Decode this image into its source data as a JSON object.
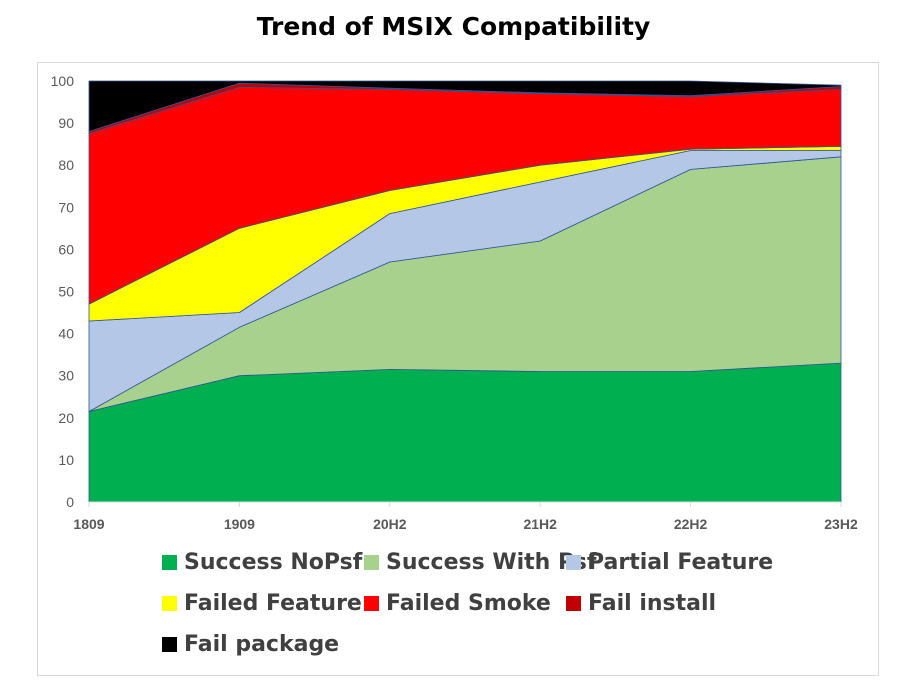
{
  "chart_data": {
    "type": "area",
    "stacked": true,
    "title": "Trend of MSIX Compatibility",
    "categories": [
      "1809",
      "1909",
      "20H2",
      "21H2",
      "22H2",
      "23H2"
    ],
    "ylim": [
      0,
      100
    ],
    "yticks": [
      0,
      10,
      20,
      30,
      40,
      50,
      60,
      70,
      80,
      90,
      100
    ],
    "grid": false,
    "legend_position": "bottom",
    "series": [
      {
        "name": "Success NoPsf",
        "color": "#00b050",
        "values": [
          21.5,
          30,
          31.5,
          31,
          31,
          33
        ]
      },
      {
        "name": "Success With Psf",
        "color": "#a9d18e",
        "values": [
          0,
          11.5,
          25.5,
          31,
          48,
          49
        ]
      },
      {
        "name": "Partial Feature",
        "color": "#b4c7e7",
        "values": [
          21.5,
          3.5,
          11.5,
          14,
          4.5,
          1.5
        ]
      },
      {
        "name": "Failed Feature",
        "color": "#ffff00",
        "values": [
          4,
          20,
          5.5,
          4,
          0.3,
          1
        ]
      },
      {
        "name": "Failed Smoke",
        "color": "#ff0000",
        "values": [
          40.5,
          33.5,
          24,
          17,
          12.5,
          13.5
        ]
      },
      {
        "name": "Fail install",
        "color": "#c00000",
        "values": [
          0.5,
          1,
          0.3,
          0.2,
          0.2,
          0.7
        ]
      },
      {
        "name": "Fail package",
        "color": "#000000",
        "values": [
          12,
          0.5,
          1.7,
          2.8,
          3.5,
          0.3
        ]
      }
    ]
  }
}
